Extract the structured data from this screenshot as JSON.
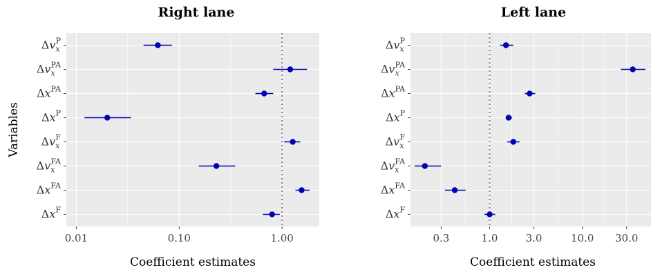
{
  "y_axis_label": "Variables",
  "chart_data": [
    {
      "type": "scatter",
      "title": "Right lane",
      "xlabel": "Coefficient estimates",
      "ylabel": "Variables",
      "x_scale": "log",
      "xlim": [
        0.008,
        2.3
      ],
      "x_ticks": [
        0.01,
        0.1,
        1
      ],
      "x_tick_labels": [
        "0.01",
        "0.10",
        "1.00"
      ],
      "reference_line": 1,
      "grid": true,
      "variables": [
        {
          "base": "Δv",
          "sub": "x",
          "sup": "P",
          "label": "Δv_x^P",
          "estimate": 0.062,
          "lower": 0.045,
          "upper": 0.085
        },
        {
          "base": "Δv",
          "sub": "x",
          "sup": "PA",
          "label": "Δv_x^PA",
          "estimate": 1.2,
          "lower": 0.82,
          "upper": 1.75
        },
        {
          "base": "Δx",
          "sub": "",
          "sup": "PA",
          "label": "Δx^PA",
          "estimate": 0.67,
          "lower": 0.55,
          "upper": 0.82
        },
        {
          "base": "Δx",
          "sub": "",
          "sup": "P",
          "label": "Δx^P",
          "estimate": 0.02,
          "lower": 0.012,
          "upper": 0.034
        },
        {
          "base": "Δv",
          "sub": "x",
          "sup": "F",
          "label": "Δv_x^F",
          "estimate": 1.27,
          "lower": 1.05,
          "upper": 1.5
        },
        {
          "base": "Δv",
          "sub": "x",
          "sup": "FA",
          "label": "Δv_x^FA",
          "estimate": 0.23,
          "lower": 0.155,
          "upper": 0.35
        },
        {
          "base": "Δx",
          "sub": "",
          "sup": "FA",
          "label": "Δx^FA",
          "estimate": 1.55,
          "lower": 1.35,
          "upper": 1.85
        },
        {
          "base": "Δx",
          "sub": "",
          "sup": "F",
          "label": "Δx^F",
          "estimate": 0.8,
          "lower": 0.65,
          "upper": 0.95
        }
      ]
    },
    {
      "type": "scatter",
      "title": "Left lane",
      "xlabel": "Coefficient estimates",
      "x_scale": "log",
      "xlim": [
        0.14,
        55
      ],
      "x_ticks": [
        0.3,
        1,
        3,
        10,
        30
      ],
      "x_tick_labels": [
        "0.3",
        "1.0",
        "3.0",
        "10.0",
        "30.0"
      ],
      "reference_line": 1,
      "grid": true,
      "variables": [
        {
          "base": "Δv",
          "sub": "x",
          "sup": "P",
          "label": "Δv_x^P",
          "estimate": 1.5,
          "lower": 1.3,
          "upper": 1.8
        },
        {
          "base": "Δv",
          "sub": "x",
          "sup": "PA",
          "label": "Δv_x^PA",
          "estimate": 35,
          "lower": 26,
          "upper": 48
        },
        {
          "base": "Δx",
          "sub": "",
          "sup": "PA",
          "label": "Δx^PA",
          "estimate": 2.7,
          "lower": 2.4,
          "upper": 3.1
        },
        {
          "base": "Δx",
          "sub": "",
          "sup": "P",
          "label": "Δx^P",
          "estimate": 1.6,
          "lower": 1.5,
          "upper": 1.75
        },
        {
          "base": "Δv",
          "sub": "x",
          "sup": "F",
          "label": "Δv_x^F",
          "estimate": 1.8,
          "lower": 1.55,
          "upper": 2.1
        },
        {
          "base": "Δv",
          "sub": "x",
          "sup": "FA",
          "label": "Δv_x^FA",
          "estimate": 0.2,
          "lower": 0.155,
          "upper": 0.3
        },
        {
          "base": "Δx",
          "sub": "",
          "sup": "FA",
          "label": "Δx^FA",
          "estimate": 0.42,
          "lower": 0.33,
          "upper": 0.55
        },
        {
          "base": "Δx",
          "sub": "",
          "sup": "F",
          "label": "Δx^F",
          "estimate": 1.0,
          "lower": 0.88,
          "upper": 1.15
        }
      ]
    }
  ]
}
